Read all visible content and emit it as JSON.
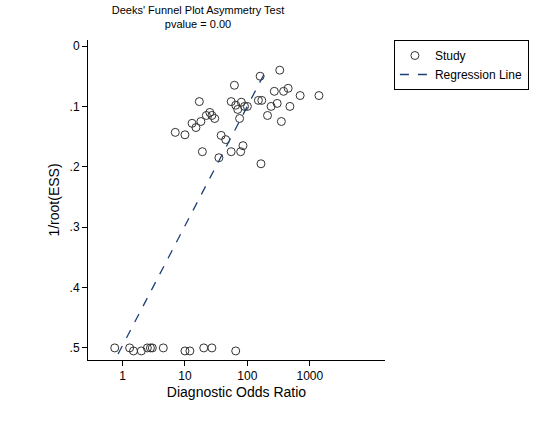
{
  "chart_data": {
    "type": "scatter",
    "title": "Deeks' Funnel Plot Asymmetry Test",
    "subtitle": "pvalue = 0.00",
    "x_label": "Diagnostic Odds Ratio",
    "y_label": "1/root(ESS)",
    "log": "x",
    "grid": false,
    "legend": "top right",
    "xlim": [
      0.28,
      16000
    ],
    "xticks": [
      1,
      10,
      100,
      1000
    ],
    "ylim": [
      0.52,
      -0.01
    ],
    "yticks": [
      0,
      {
        "value": 0.1,
        "label": ".1"
      },
      {
        "value": 0.2,
        "label": ".2"
      },
      {
        "value": 0.3,
        "label": ".3"
      },
      {
        "value": 0.4,
        "label": ".4"
      },
      {
        "value": 0.5,
        "label": ".5"
      }
    ],
    "series": [
      {
        "name": "Study",
        "type": "scatter",
        "marker": "hollow circle",
        "color": "#333333",
        "x": [
          0.75,
          1.3,
          1.5,
          2,
          2.5,
          2.8,
          3,
          4.5,
          10,
          12,
          20,
          27,
          65,
          7,
          10,
          13,
          15,
          17,
          18,
          19,
          22,
          25,
          27,
          30,
          35,
          38,
          45,
          55,
          55,
          62,
          65,
          70,
          75,
          78,
          80,
          85,
          90,
          100,
          150,
          160,
          165,
          170,
          210,
          240,
          270,
          300,
          330,
          350,
          380,
          450,
          480,
          700,
          1400
        ],
        "values": [
          0.5,
          0.5,
          0.505,
          0.505,
          0.5,
          0.5,
          0.5,
          0.5,
          0.505,
          0.505,
          0.5,
          0.5,
          0.505,
          0.143,
          0.147,
          0.128,
          0.135,
          0.092,
          0.125,
          0.175,
          0.115,
          0.11,
          0.115,
          0.12,
          0.185,
          0.148,
          0.155,
          0.175,
          0.092,
          0.065,
          0.098,
          0.105,
          0.12,
          0.175,
          0.093,
          0.165,
          0.1,
          0.1,
          0.09,
          0.05,
          0.195,
          0.09,
          0.115,
          0.1,
          0.075,
          0.095,
          0.04,
          0.125,
          0.075,
          0.07,
          0.1,
          0.082,
          0.082
        ]
      },
      {
        "name": "Regression Line",
        "type": "line",
        "line_style": "dash",
        "color": "#1f3f77",
        "x": [
          0.85,
          200
        ],
        "values": [
          0.51,
          0.04
        ]
      }
    ]
  }
}
